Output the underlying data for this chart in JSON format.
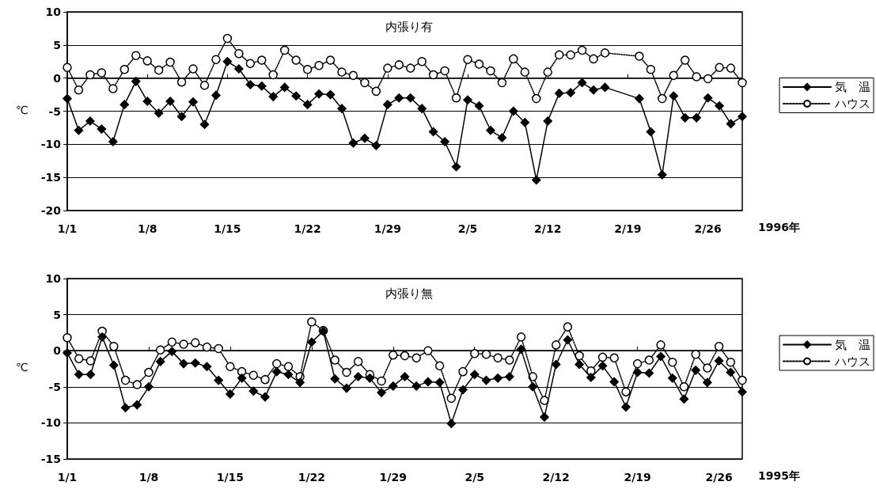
{
  "chart_data": [
    {
      "type": "line",
      "title": "内張り有",
      "xlabel": "1996年",
      "ylabel": "℃",
      "categories": [
        "1/1",
        null,
        null,
        null,
        null,
        null,
        null,
        "1/8",
        null,
        null,
        null,
        null,
        null,
        null,
        "1/15",
        null,
        null,
        null,
        null,
        null,
        null,
        "1/22",
        null,
        null,
        null,
        null,
        null,
        null,
        "1/29",
        null,
        null,
        null,
        null,
        null,
        null,
        "2/5",
        null,
        null,
        null,
        null,
        null,
        null,
        "2/12",
        null,
        null,
        null,
        null,
        null,
        null,
        "2/19",
        null,
        null,
        null,
        null,
        null,
        null,
        "2/26",
        null,
        null,
        null
      ],
      "series": [
        {
          "name": "気　温",
          "color": "#000000",
          "marker": "diamond",
          "line_style": "solid",
          "values": [
            -3.1,
            -7.9,
            -6.5,
            -7.7,
            -9.6,
            -4.0,
            -0.5,
            -3.5,
            -5.3,
            -3.5,
            -5.8,
            -3.6,
            -7.0,
            -2.6,
            2.5,
            1.4,
            -1.0,
            -1.2,
            -2.8,
            -1.4,
            -2.7,
            -4.0,
            -2.4,
            -2.5,
            -4.6,
            -9.8,
            -9.1,
            -10.2,
            -4.0,
            -3.0,
            -3.0,
            -4.6,
            -8.1,
            -9.6,
            -13.4,
            -3.3,
            -4.2,
            -7.9,
            -9.0,
            -5.0,
            -6.7,
            -15.4,
            -6.5,
            -2.3,
            -2.2,
            -0.7,
            -1.8,
            -1.4,
            null,
            null,
            -3.1,
            -8.1,
            -14.6,
            -2.7,
            -6.0,
            -6.0,
            -3.0,
            -4.2,
            -6.9,
            -5.8
          ]
        },
        {
          "name": "ハウス",
          "color": "#000000",
          "marker": "circle",
          "line_style": "dotted",
          "values": [
            1.6,
            -1.8,
            0.5,
            0.8,
            -1.6,
            1.3,
            3.4,
            2.6,
            1.2,
            2.4,
            -0.6,
            1.4,
            -1.1,
            2.8,
            6.0,
            3.7,
            2.2,
            2.7,
            0.5,
            4.2,
            2.7,
            1.3,
            1.9,
            2.7,
            0.9,
            0.4,
            -0.7,
            -2.0,
            1.5,
            2.0,
            1.5,
            2.5,
            0.5,
            1.1,
            -3.0,
            2.8,
            2.1,
            1.1,
            -0.7,
            2.9,
            0.9,
            -3.1,
            0.9,
            3.5,
            3.5,
            4.2,
            2.9,
            3.8,
            null,
            null,
            3.3,
            1.3,
            -3.1,
            0.4,
            2.7,
            0.2,
            -0.1,
            1.6,
            1.5,
            -0.7
          ]
        }
      ],
      "ylim": [
        -20,
        10
      ],
      "yticks": [
        -20,
        -15,
        -10,
        -5,
        0,
        5,
        10
      ],
      "grid": "y",
      "legend": "right"
    },
    {
      "type": "line",
      "title": "内張り無",
      "xlabel": "1995年",
      "ylabel": "℃",
      "categories": [
        "1/1",
        null,
        null,
        null,
        null,
        null,
        null,
        "1/8",
        null,
        null,
        null,
        null,
        null,
        null,
        "1/15",
        null,
        null,
        null,
        null,
        null,
        null,
        "1/22",
        null,
        null,
        null,
        null,
        null,
        null,
        "1/29",
        null,
        null,
        null,
        null,
        null,
        null,
        "2/5",
        null,
        null,
        null,
        null,
        null,
        null,
        "2/12",
        null,
        null,
        null,
        null,
        null,
        null,
        "2/19",
        null,
        null,
        null,
        null,
        null,
        null,
        "2/26",
        null,
        null
      ],
      "series": [
        {
          "name": "気　温",
          "color": "#000000",
          "marker": "diamond",
          "line_style": "solid",
          "values": [
            -0.3,
            -3.3,
            -3.3,
            1.9,
            -2.0,
            -7.9,
            -7.5,
            -5.0,
            -1.5,
            -0.1,
            -1.8,
            -1.7,
            -2.2,
            -4.1,
            -6.0,
            -3.8,
            -5.6,
            -6.4,
            -2.9,
            -3.3,
            -4.4,
            1.2,
            2.7,
            -3.9,
            -5.2,
            -3.6,
            -3.8,
            -5.8,
            -4.9,
            -3.6,
            -4.9,
            -4.3,
            -4.4,
            -10.1,
            -5.4,
            -3.3,
            -4.1,
            -3.8,
            -3.6,
            0.2,
            -5.0,
            -9.2,
            -1.9,
            1.5,
            -1.9,
            -3.7,
            -2.1,
            -4.3,
            -7.8,
            -3.0,
            -3.1,
            -0.8,
            -3.8,
            -6.7,
            -2.7,
            -4.4,
            -1.4,
            -3.0,
            -5.7
          ]
        },
        {
          "name": "ハウス",
          "color": "#000000",
          "marker": "circle",
          "line_style": "dotted",
          "values": [
            1.8,
            -1.1,
            -1.4,
            2.7,
            0.6,
            -4.1,
            -4.7,
            -3.0,
            0.1,
            1.2,
            0.9,
            1.1,
            0.5,
            0.3,
            -2.2,
            -2.9,
            -3.4,
            -4.0,
            -1.8,
            -2.2,
            -3.6,
            4.0,
            2.8,
            -1.3,
            -3.0,
            -1.5,
            -3.3,
            -4.2,
            -0.6,
            -0.7,
            -1.0,
            0.0,
            -2.1,
            -6.6,
            -2.9,
            -0.4,
            -0.5,
            -1.0,
            -1.3,
            1.9,
            -3.6,
            -6.9,
            0.8,
            3.3,
            -0.7,
            -2.8,
            -0.9,
            -1.0,
            -5.7,
            -1.8,
            -1.3,
            0.8,
            -1.6,
            -5.0,
            -0.5,
            -2.4,
            0.6,
            -1.6,
            -4.1
          ]
        }
      ],
      "ylim": [
        -15,
        10
      ],
      "yticks": [
        -15,
        -10,
        -5,
        0,
        5,
        10
      ],
      "grid": "y",
      "legend": "right"
    }
  ]
}
